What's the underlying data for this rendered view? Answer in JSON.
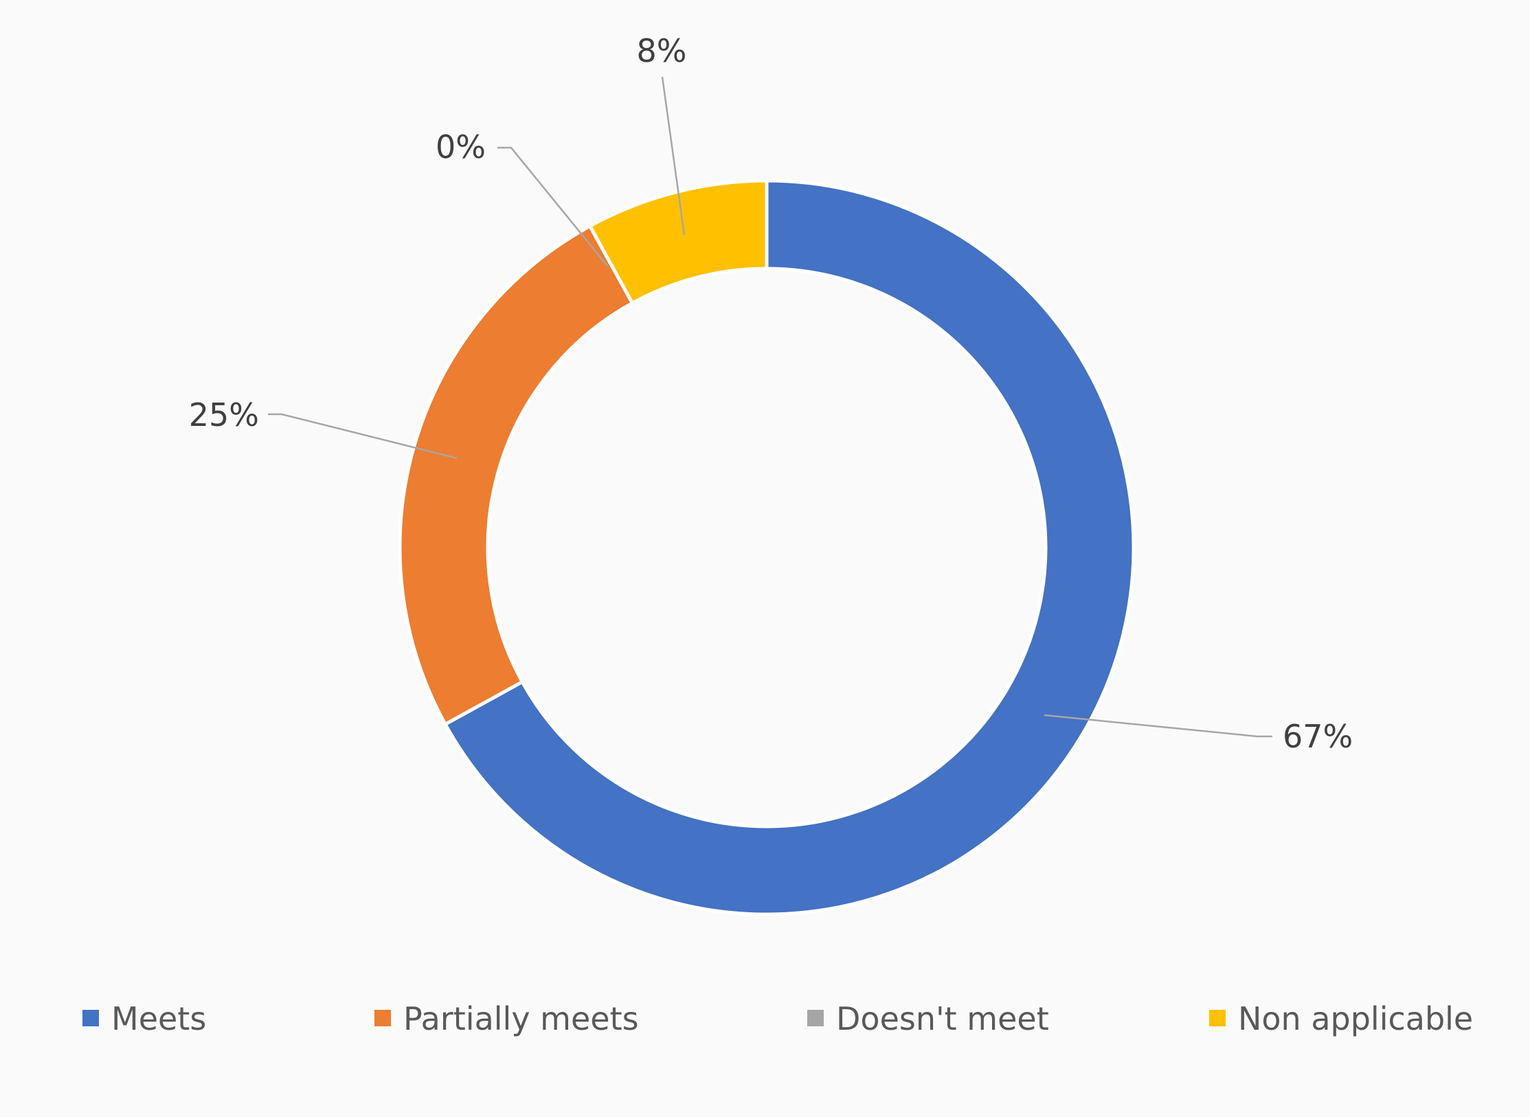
{
  "chart_data": {
    "type": "pie",
    "variant": "doughnut",
    "title": "",
    "legend_position": "bottom",
    "categories": [
      "Meets",
      "Partially meets",
      "Doesn't meet",
      "Non applicable"
    ],
    "values": [
      67,
      25,
      0,
      8
    ],
    "data_labels": [
      "67%",
      "25%",
      "0%",
      "8%"
    ],
    "colors": [
      "#4472C4",
      "#ED7D31",
      "#A5A5A5",
      "#FFC000"
    ]
  }
}
